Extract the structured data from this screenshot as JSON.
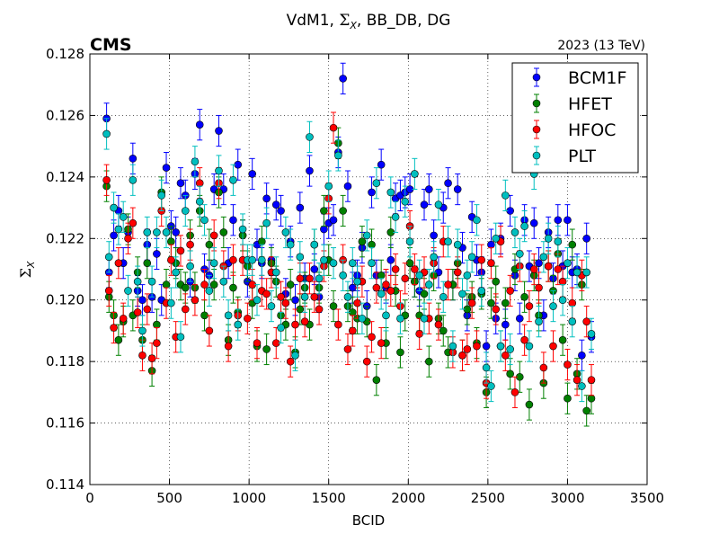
{
  "chart_data": {
    "type": "scatter",
    "title": "VdM1, Σ_X, BB_DB, DG",
    "title_prefix": "VdM1, ",
    "title_symbol": "Σ",
    "title_symbol_sub": "X",
    "title_suffix": ", BB_DB, DG",
    "experiment_label": "CMS",
    "run_label": "2023 (13 TeV)",
    "xlabel": "BCID",
    "ylabel_symbol": "Σ",
    "ylabel_sub": "X",
    "xlim": [
      0,
      3500
    ],
    "ylim": [
      0.114,
      0.128
    ],
    "xticks": [
      0,
      500,
      1000,
      1500,
      2000,
      2500,
      3000,
      3500
    ],
    "yticks": [
      0.114,
      0.116,
      0.118,
      0.12,
      0.122,
      0.124,
      0.126,
      0.128
    ],
    "xtick_labels": [
      "0",
      "500",
      "1000",
      "1500",
      "2000",
      "2500",
      "3000",
      "3500"
    ],
    "ytick_labels": [
      "0.114",
      "0.116",
      "0.118",
      "0.120",
      "0.122",
      "0.124",
      "0.126",
      "0.128"
    ],
    "grid": true,
    "legend_position": "top-right",
    "error_y": 0.0005,
    "series": [
      {
        "name": "BCM1F",
        "color": "#0000ff",
        "x": [
          105,
          120,
          150,
          180,
          210,
          240,
          270,
          300,
          330,
          360,
          390,
          420,
          450,
          480,
          510,
          540,
          570,
          600,
          630,
          660,
          690,
          720,
          750,
          780,
          810,
          840,
          870,
          900,
          930,
          960,
          990,
          1020,
          1050,
          1080,
          1110,
          1140,
          1170,
          1200,
          1230,
          1260,
          1290,
          1320,
          1350,
          1380,
          1410,
          1440,
          1470,
          1500,
          1530,
          1560,
          1590,
          1620,
          1650,
          1680,
          1710,
          1740,
          1770,
          1800,
          1830,
          1860,
          1890,
          1920,
          1950,
          1980,
          2010,
          2040,
          2070,
          2100,
          2130,
          2160,
          2190,
          2220,
          2250,
          2280,
          2310,
          2340,
          2370,
          2400,
          2430,
          2460,
          2490,
          2520,
          2550,
          2580,
          2610,
          2640,
          2670,
          2700,
          2730,
          2760,
          2790,
          2820,
          2850,
          2880,
          2910,
          2940,
          2970,
          3000,
          3030,
          3060,
          3090,
          3120,
          3150
        ],
        "y": [
          0.1259,
          0.1209,
          0.1221,
          0.1229,
          0.1212,
          0.1222,
          0.1246,
          0.1203,
          0.12,
          0.1218,
          0.1201,
          0.1215,
          0.12,
          0.1243,
          0.1224,
          0.1222,
          0.1238,
          0.1234,
          0.1206,
          0.1241,
          0.1257,
          0.121,
          0.1208,
          0.1236,
          0.1255,
          0.1236,
          0.1212,
          0.1226,
          0.1244,
          0.1221,
          0.1206,
          0.1241,
          0.1218,
          0.1212,
          0.1233,
          0.1213,
          0.1231,
          0.1229,
          0.1202,
          0.1219,
          0.12,
          0.123,
          0.1207,
          0.1242,
          0.121,
          0.1201,
          0.1223,
          0.1225,
          0.1226,
          0.1248,
          0.1272,
          0.1237,
          0.1204,
          0.1208,
          0.1217,
          0.1198,
          0.1235,
          0.1208,
          0.1244,
          0.1204,
          0.1213,
          0.1233,
          0.1234,
          0.1235,
          0.1236,
          0.1206,
          0.1203,
          0.1231,
          0.1236,
          0.1221,
          0.1209,
          0.123,
          0.1238,
          0.1205,
          0.1236,
          0.1217,
          0.1195,
          0.1227,
          0.1213,
          0.1209,
          0.1185,
          0.1218,
          0.1194,
          0.122,
          0.1192,
          0.1229,
          0.1208,
          0.1194,
          0.1226,
          0.1211,
          0.1225,
          0.1212,
          0.1195,
          0.1222,
          0.1207,
          0.1226,
          0.1211,
          0.1226,
          0.1209,
          0.121,
          0.1182,
          0.122,
          0.1188
        ]
      },
      {
        "name": "HFET",
        "color": "#008000",
        "x": [
          105,
          120,
          150,
          180,
          210,
          240,
          270,
          300,
          330,
          360,
          390,
          420,
          450,
          480,
          510,
          540,
          570,
          600,
          630,
          660,
          690,
          720,
          750,
          780,
          810,
          840,
          870,
          900,
          930,
          960,
          990,
          1020,
          1050,
          1080,
          1110,
          1140,
          1170,
          1200,
          1230,
          1260,
          1290,
          1320,
          1350,
          1380,
          1410,
          1440,
          1470,
          1500,
          1530,
          1560,
          1590,
          1620,
          1650,
          1680,
          1710,
          1740,
          1770,
          1800,
          1830,
          1860,
          1890,
          1920,
          1950,
          1980,
          2010,
          2040,
          2070,
          2100,
          2130,
          2160,
          2190,
          2220,
          2250,
          2280,
          2310,
          2340,
          2370,
          2400,
          2430,
          2460,
          2490,
          2520,
          2550,
          2580,
          2610,
          2640,
          2670,
          2700,
          2730,
          2760,
          2790,
          2820,
          2850,
          2880,
          2910,
          2940,
          2970,
          3000,
          3030,
          3060,
          3090,
          3120,
          3150
        ],
        "y": [
          0.1237,
          0.1201,
          0.1195,
          0.1187,
          0.1193,
          0.1223,
          0.1195,
          0.1209,
          0.1187,
          0.1212,
          0.1177,
          0.1192,
          0.1235,
          0.1205,
          0.1219,
          0.1212,
          0.1205,
          0.1204,
          0.1221,
          0.1204,
          0.1229,
          0.1195,
          0.1218,
          0.1205,
          0.1235,
          0.1222,
          0.1187,
          0.1204,
          0.1196,
          0.1221,
          0.1211,
          0.1199,
          0.1185,
          0.1219,
          0.1184,
          0.1212,
          0.1206,
          0.1195,
          0.1192,
          0.1205,
          0.1183,
          0.1197,
          0.1204,
          0.1192,
          0.1218,
          0.1204,
          0.1229,
          0.1213,
          0.1198,
          0.1251,
          0.1229,
          0.1198,
          0.1196,
          0.1194,
          0.1219,
          0.1193,
          0.1218,
          0.1174,
          0.1208,
          0.1186,
          0.1222,
          0.1203,
          0.1183,
          0.1195,
          0.1212,
          0.1206,
          0.1195,
          0.1202,
          0.118,
          0.1208,
          0.1194,
          0.119,
          0.1183,
          0.1205,
          0.1212,
          0.1182,
          0.1197,
          0.1201,
          0.1186,
          0.1202,
          0.117,
          0.1199,
          0.1206,
          0.1185,
          0.1199,
          0.1176,
          0.121,
          0.1175,
          0.1201,
          0.1166,
          0.1208,
          0.1195,
          0.1173,
          0.1211,
          0.1203,
          0.1215,
          0.1187,
          0.1168,
          0.1218,
          0.1176,
          0.1205,
          0.1164,
          0.1168
        ]
      },
      {
        "name": "HFOC",
        "color": "#ff0000",
        "x": [
          105,
          120,
          150,
          180,
          210,
          240,
          270,
          300,
          330,
          360,
          390,
          420,
          450,
          480,
          510,
          540,
          570,
          600,
          630,
          660,
          690,
          720,
          750,
          780,
          810,
          840,
          870,
          900,
          930,
          960,
          990,
          1020,
          1050,
          1080,
          1110,
          1140,
          1170,
          1200,
          1230,
          1260,
          1290,
          1320,
          1350,
          1380,
          1410,
          1440,
          1470,
          1500,
          1530,
          1560,
          1590,
          1620,
          1650,
          1680,
          1710,
          1740,
          1770,
          1800,
          1830,
          1860,
          1890,
          1920,
          1950,
          1980,
          2010,
          2040,
          2070,
          2100,
          2130,
          2160,
          2190,
          2220,
          2250,
          2280,
          2310,
          2340,
          2370,
          2400,
          2430,
          2460,
          2490,
          2520,
          2550,
          2580,
          2610,
          2640,
          2670,
          2700,
          2730,
          2760,
          2790,
          2820,
          2850,
          2880,
          2910,
          2940,
          2970,
          3000,
          3030,
          3060,
          3090,
          3120,
          3150
        ],
        "y": [
          0.1239,
          0.1203,
          0.1191,
          0.1212,
          0.1194,
          0.122,
          0.1225,
          0.1196,
          0.1182,
          0.1197,
          0.1181,
          0.1186,
          0.1229,
          0.1199,
          0.1213,
          0.1188,
          0.1216,
          0.1197,
          0.1218,
          0.12,
          0.1238,
          0.1205,
          0.119,
          0.1221,
          0.1238,
          0.1211,
          0.1185,
          0.1213,
          0.1195,
          0.1213,
          0.1194,
          0.1205,
          0.1186,
          0.1203,
          0.1202,
          0.1209,
          0.1186,
          0.1201,
          0.1199,
          0.118,
          0.1192,
          0.1207,
          0.1193,
          0.1207,
          0.1201,
          0.1197,
          0.1211,
          0.1233,
          0.1256,
          0.1192,
          0.1213,
          0.1184,
          0.119,
          0.1199,
          0.1206,
          0.118,
          0.1188,
          0.1204,
          0.1186,
          0.1205,
          0.1203,
          0.121,
          0.1198,
          0.1207,
          0.1224,
          0.121,
          0.1189,
          0.1209,
          0.1194,
          0.1212,
          0.1192,
          0.1219,
          0.1205,
          0.1183,
          0.1209,
          0.1182,
          0.1184,
          0.1199,
          0.1185,
          0.1213,
          0.1173,
          0.1212,
          0.1197,
          0.1219,
          0.1182,
          0.1203,
          0.117,
          0.1211,
          0.1187,
          0.1198,
          0.121,
          0.1204,
          0.1178,
          0.1211,
          0.1185,
          0.121,
          0.1206,
          0.1179,
          0.1199,
          0.1174,
          0.1208,
          0.1193,
          0.1174
        ]
      },
      {
        "name": "PLT",
        "color": "#00bfbf",
        "x": [
          105,
          120,
          150,
          180,
          210,
          240,
          270,
          300,
          330,
          360,
          390,
          420,
          450,
          480,
          510,
          540,
          570,
          600,
          630,
          660,
          690,
          720,
          750,
          780,
          810,
          840,
          870,
          900,
          930,
          960,
          990,
          1020,
          1050,
          1080,
          1110,
          1140,
          1170,
          1200,
          1230,
          1260,
          1290,
          1320,
          1350,
          1380,
          1410,
          1440,
          1470,
          1500,
          1530,
          1560,
          1590,
          1620,
          1650,
          1680,
          1710,
          1740,
          1770,
          1800,
          1830,
          1860,
          1890,
          1920,
          1950,
          1980,
          2010,
          2040,
          2070,
          2100,
          2130,
          2160,
          2190,
          2220,
          2250,
          2280,
          2310,
          2340,
          2370,
          2400,
          2430,
          2460,
          2490,
          2520,
          2550,
          2580,
          2610,
          2640,
          2670,
          2700,
          2730,
          2760,
          2790,
          2820,
          2850,
          2880,
          2910,
          2940,
          2970,
          3000,
          3030,
          3060,
          3090,
          3120,
          3150
        ],
        "y": [
          0.1254,
          0.1214,
          0.123,
          0.1223,
          0.1227,
          0.1203,
          0.1239,
          0.1206,
          0.119,
          0.1222,
          0.1206,
          0.1222,
          0.1234,
          0.1222,
          0.1199,
          0.1209,
          0.1188,
          0.1229,
          0.1211,
          0.1245,
          0.1232,
          0.1226,
          0.1203,
          0.1212,
          0.1242,
          0.1206,
          0.1195,
          0.1239,
          0.1192,
          0.1223,
          0.1213,
          0.1213,
          0.12,
          0.1213,
          0.1225,
          0.1198,
          0.1209,
          0.1191,
          0.1222,
          0.1218,
          0.1182,
          0.1214,
          0.1201,
          0.1253,
          0.1218,
          0.1207,
          0.1213,
          0.1237,
          0.1212,
          0.1247,
          0.1208,
          0.1201,
          0.1212,
          0.1206,
          0.1194,
          0.1221,
          0.1212,
          0.1238,
          0.1202,
          0.1195,
          0.1235,
          0.1227,
          0.1194,
          0.1232,
          0.1219,
          0.1241,
          0.1208,
          0.1194,
          0.1205,
          0.1214,
          0.1231,
          0.1201,
          0.1219,
          0.1185,
          0.1218,
          0.1202,
          0.1208,
          0.1214,
          0.1226,
          0.1203,
          0.1178,
          0.1172,
          0.122,
          0.1185,
          0.1234,
          0.1184,
          0.1222,
          0.1215,
          0.1224,
          0.1185,
          0.1241,
          0.1193,
          0.1214,
          0.122,
          0.1198,
          0.1219,
          0.12,
          0.1212,
          0.1193,
          0.1209,
          0.1172,
          0.1209,
          0.1189
        ]
      }
    ]
  }
}
